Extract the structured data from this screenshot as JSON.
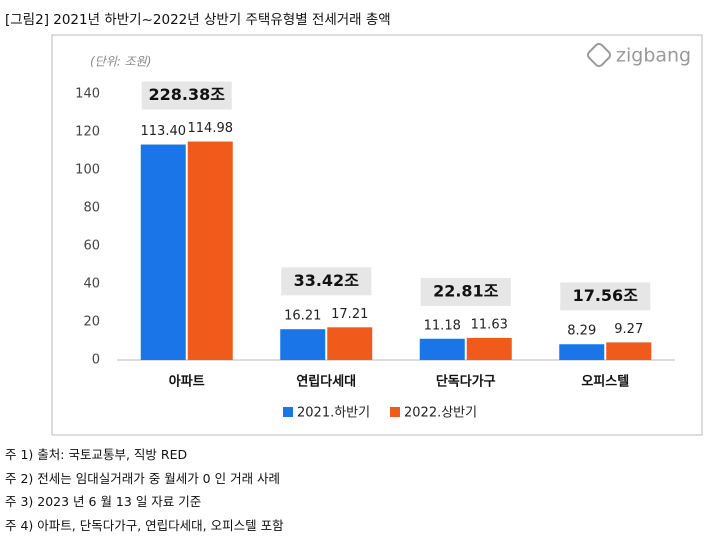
{
  "header": {
    "title": "[그림2] 2021년 하반기~2022년 상반기 주택유형별 전세거래 총액"
  },
  "chart_data": {
    "type": "bar",
    "unit": "(단위: 조원)",
    "logo": "zigbang",
    "categories": [
      "아파트",
      "연립다세대",
      "단독다가구",
      "오피스텔"
    ],
    "series": [
      {
        "name": "2021.하반기",
        "color": "#1a75e8",
        "values": [
          113.4,
          16.21,
          11.18,
          8.29
        ],
        "value_labels": [
          "113.40",
          "16.21",
          "11.18",
          "8.29"
        ]
      },
      {
        "name": "2022.상반기",
        "color": "#f05a1a",
        "values": [
          114.98,
          17.21,
          11.63,
          9.27
        ],
        "value_labels": [
          "114.98",
          "17.21",
          "11.63",
          "9.27"
        ]
      }
    ],
    "totals": [
      "228.38조",
      "33.42조",
      "22.81조",
      "17.56조"
    ],
    "ylim": [
      0,
      140
    ],
    "yticks": [
      0,
      20,
      40,
      60,
      80,
      100,
      120,
      140
    ],
    "grid": false,
    "legend": "bottom"
  },
  "notes": [
    "주 1) 출처: 국토교통부, 직방 RED",
    "주 2) 전세는 임대실거래가 중 월세가 0 인 거래 사례",
    "주 3) 2023 년 6 월 13 일 자료 기준",
    "주 4) 아파트, 단독다가구, 연립다세대, 오피스텔 포함"
  ]
}
